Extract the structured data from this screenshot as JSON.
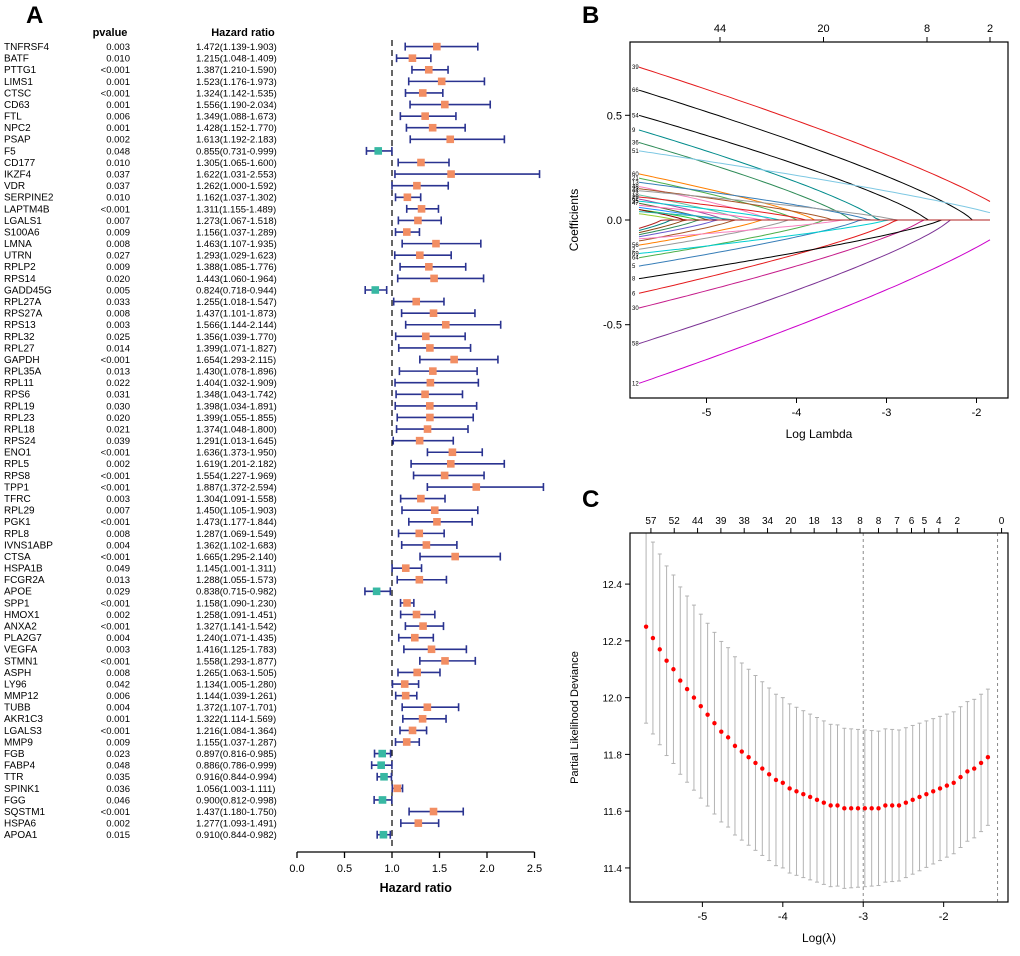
{
  "panels": [
    "A",
    "B",
    "C"
  ],
  "chart_data": [
    {
      "panel": "A",
      "type": "forest",
      "col_headers": [
        "pvalue",
        "Hazard ratio"
      ],
      "xlabel": "Hazard ratio",
      "x_ticks": [
        0.0,
        0.5,
        1.0,
        1.5,
        2.0,
        2.5
      ],
      "xlim": [
        0.0,
        2.5
      ],
      "ref_line": 1.0,
      "colors": {
        "bar": "#2a3390",
        "positive": "#f28e63",
        "negative": "#38b8a3"
      },
      "rows": [
        [
          "TNFRSF4",
          "0.003",
          1.472,
          1.139,
          1.903
        ],
        [
          "BATF",
          "0.010",
          1.215,
          1.048,
          1.409
        ],
        [
          "PTTG1",
          "<0.001",
          1.387,
          1.21,
          1.59
        ],
        [
          "LIMS1",
          "0.001",
          1.523,
          1.176,
          1.973
        ],
        [
          "CTSC",
          "<0.001",
          1.324,
          1.142,
          1.535
        ],
        [
          "CD63",
          "0.001",
          1.556,
          1.19,
          2.034
        ],
        [
          "FTL",
          "0.006",
          1.349,
          1.088,
          1.673
        ],
        [
          "NPC2",
          "0.001",
          1.428,
          1.152,
          1.77
        ],
        [
          "PSAP",
          "0.002",
          1.613,
          1.192,
          2.183
        ],
        [
          "F5",
          "0.048",
          0.855,
          0.731,
          0.999
        ],
        [
          "CD177",
          "0.010",
          1.305,
          1.065,
          1.6
        ],
        [
          "IKZF4",
          "0.037",
          1.622,
          1.031,
          2.553
        ],
        [
          "VDR",
          "0.037",
          1.262,
          1.0,
          1.592
        ],
        [
          "SERPINE2",
          "0.010",
          1.162,
          1.037,
          1.302
        ],
        [
          "LAPTM4B",
          "<0.001",
          1.311,
          1.155,
          1.489
        ],
        [
          "LGALS1",
          "0.007",
          1.273,
          1.067,
          1.518
        ],
        [
          "S100A6",
          "0.009",
          1.156,
          1.037,
          1.289
        ],
        [
          "LMNA",
          "0.008",
          1.463,
          1.107,
          1.935
        ],
        [
          "UTRN",
          "0.027",
          1.293,
          1.029,
          1.623
        ],
        [
          "RPLP2",
          "0.009",
          1.388,
          1.085,
          1.776
        ],
        [
          "RPS14",
          "0.020",
          1.443,
          1.06,
          1.964
        ],
        [
          "GADD45G",
          "0.005",
          0.824,
          0.718,
          0.944
        ],
        [
          "RPL27A",
          "0.033",
          1.255,
          1.018,
          1.547
        ],
        [
          "RPS27A",
          "0.008",
          1.437,
          1.101,
          1.873
        ],
        [
          "RPS13",
          "0.003",
          1.566,
          1.144,
          2.144
        ],
        [
          "RPL32",
          "0.025",
          1.356,
          1.039,
          1.77
        ],
        [
          "RPL27",
          "0.014",
          1.399,
          1.071,
          1.827
        ],
        [
          "GAPDH",
          "<0.001",
          1.654,
          1.293,
          2.115
        ],
        [
          "RPL35A",
          "0.013",
          1.43,
          1.078,
          1.896
        ],
        [
          "RPL11",
          "0.022",
          1.404,
          1.032,
          1.909
        ],
        [
          "RPS6",
          "0.031",
          1.348,
          1.043,
          1.742
        ],
        [
          "RPL19",
          "0.030",
          1.398,
          1.034,
          1.891
        ],
        [
          "RPL23",
          "0.020",
          1.399,
          1.055,
          1.855
        ],
        [
          "RPL18",
          "0.021",
          1.374,
          1.048,
          1.8
        ],
        [
          "RPS24",
          "0.039",
          1.291,
          1.013,
          1.645
        ],
        [
          "ENO1",
          "<0.001",
          1.636,
          1.373,
          1.95
        ],
        [
          "RPL5",
          "0.002",
          1.619,
          1.201,
          2.182
        ],
        [
          "RPS8",
          "<0.001",
          1.554,
          1.227,
          1.969
        ],
        [
          "TPP1",
          "<0.001",
          1.887,
          1.372,
          2.594
        ],
        [
          "TFRC",
          "0.003",
          1.304,
          1.091,
          1.558
        ],
        [
          "RPL29",
          "0.007",
          1.45,
          1.105,
          1.903
        ],
        [
          "PGK1",
          "<0.001",
          1.473,
          1.177,
          1.844
        ],
        [
          "RPL8",
          "0.008",
          1.287,
          1.069,
          1.549
        ],
        [
          "IVNS1ABP",
          "0.004",
          1.362,
          1.102,
          1.683
        ],
        [
          "CTSA",
          "<0.001",
          1.665,
          1.295,
          2.14
        ],
        [
          "HSPA1B",
          "0.049",
          1.145,
          1.001,
          1.311
        ],
        [
          "FCGR2A",
          "0.013",
          1.288,
          1.055,
          1.573
        ],
        [
          "APOE",
          "0.029",
          0.838,
          0.715,
          0.982
        ],
        [
          "SPP1",
          "<0.001",
          1.158,
          1.09,
          1.23
        ],
        [
          "HMOX1",
          "0.002",
          1.258,
          1.091,
          1.451
        ],
        [
          "ANXA2",
          "<0.001",
          1.327,
          1.141,
          1.542
        ],
        [
          "PLA2G7",
          "0.004",
          1.24,
          1.071,
          1.435
        ],
        [
          "VEGFA",
          "0.003",
          1.416,
          1.125,
          1.783
        ],
        [
          "STMN1",
          "<0.001",
          1.558,
          1.293,
          1.877
        ],
        [
          "ASPH",
          "0.008",
          1.265,
          1.063,
          1.505
        ],
        [
          "LY96",
          "0.042",
          1.134,
          1.005,
          1.28
        ],
        [
          "MMP12",
          "0.006",
          1.144,
          1.039,
          1.261
        ],
        [
          "TUBB",
          "0.004",
          1.372,
          1.107,
          1.701
        ],
        [
          "AKR1C3",
          "0.001",
          1.322,
          1.114,
          1.569
        ],
        [
          "LGALS3",
          "<0.001",
          1.216,
          1.084,
          1.364
        ],
        [
          "MMP9",
          "0.009",
          1.155,
          1.037,
          1.287
        ],
        [
          "FGB",
          "0.023",
          0.897,
          0.816,
          0.985
        ],
        [
          "FABP4",
          "0.048",
          0.886,
          0.786,
          0.999
        ],
        [
          "TTR",
          "0.035",
          0.916,
          0.844,
          0.994
        ],
        [
          "SPINK1",
          "0.036",
          1.056,
          1.003,
          1.111
        ],
        [
          "FGG",
          "0.046",
          0.9,
          0.812,
          0.998
        ],
        [
          "SQSTM1",
          "<0.001",
          1.437,
          1.18,
          1.75
        ],
        [
          "HSPA6",
          "0.002",
          1.277,
          1.093,
          1.491
        ],
        [
          "APOA1",
          "0.015",
          0.91,
          0.844,
          0.982
        ]
      ]
    },
    {
      "panel": "B",
      "type": "line",
      "xlabel": "Log Lambda",
      "ylabel": "Coefficients",
      "xlim": [
        -5.85,
        -1.65
      ],
      "ylim": [
        -0.85,
        0.85
      ],
      "x_ticks": [
        -5,
        -4,
        -3,
        -2
      ],
      "y_ticks": [
        0.5,
        0.0,
        -0.5
      ],
      "top_axis": [
        {
          "v": 44,
          "x": -4.85
        },
        {
          "v": 20,
          "x": -3.7
        },
        {
          "v": 8,
          "x": -2.55
        },
        {
          "v": 2,
          "x": -1.85
        }
      ],
      "series": [
        {
          "color": "#e41a1c",
          "y0": 0.73,
          "xz": -1.55,
          "label": "39"
        },
        {
          "color": "#000000",
          "y0": 0.62,
          "xz": -2.05,
          "label": "66"
        },
        {
          "color": "#000000",
          "y0": 0.5,
          "xz": -2.55,
          "label": "54"
        },
        {
          "color": "#008b8b",
          "y0": 0.43,
          "xz": -3.1,
          "label": "9"
        },
        {
          "color": "#2e8b57",
          "y0": 0.37,
          "xz": -3.4,
          "label": "36"
        },
        {
          "color": "#7ec8e3",
          "y0": 0.33,
          "xz": -1.6,
          "label": "51"
        },
        {
          "color": "#ff7f00",
          "y0": 0.22,
          "xz": -3.8,
          "label": "60"
        },
        {
          "color": "#4daf4a",
          "y0": 0.2,
          "xz": -4.0,
          "label": "21"
        },
        {
          "color": "#377eb8",
          "y0": 0.18,
          "xz": -3.2,
          "label": "13"
        },
        {
          "color": "#f781bf",
          "y0": 0.16,
          "xz": -4.3,
          "label": "48"
        },
        {
          "color": "#a65628",
          "y0": 0.15,
          "xz": -3.6,
          "label": "23"
        },
        {
          "color": "#999999",
          "y0": 0.14,
          "xz": -2.9,
          "label": "44"
        },
        {
          "color": "#66c2a5",
          "y0": 0.12,
          "xz": -4.6,
          "label": "18"
        },
        {
          "color": "#e41a1c",
          "y0": 0.11,
          "xz": -3.9,
          "label": "29"
        },
        {
          "color": "#984ea3",
          "y0": 0.1,
          "xz": -4.8,
          "label": "62"
        },
        {
          "color": "#00ced1",
          "y0": 0.09,
          "xz": -4.2,
          "label": "35"
        },
        {
          "color": "#556b2f",
          "y0": 0.08,
          "xz": -5.0,
          "label": "47"
        },
        {
          "color": "#ff69b4",
          "y0": 0.07,
          "xz": -4.4
        },
        {
          "color": "#1e90ff",
          "y0": 0.06,
          "xz": -4.9
        },
        {
          "color": "#32cd32",
          "y0": 0.05,
          "xz": -5.1
        },
        {
          "color": "#8b0000",
          "y0": 0.05,
          "xz": -5.25
        },
        {
          "color": "#20b2aa",
          "y0": 0.04,
          "xz": -4.7
        },
        {
          "color": "#9acd32",
          "y0": 0.03,
          "xz": -5.35
        },
        {
          "color": "#cc00cc",
          "y0": -0.78,
          "xz": -1.55,
          "label": "12"
        },
        {
          "color": "#7b3294",
          "y0": -0.59,
          "xz": -2.3,
          "label": "58"
        },
        {
          "color": "#c51b8a",
          "y0": -0.42,
          "xz": -2.6,
          "label": "30"
        },
        {
          "color": "#e41a1c",
          "y0": -0.35,
          "xz": -2.9,
          "label": "6"
        },
        {
          "color": "#000000",
          "y0": -0.28,
          "xz": -2.4,
          "label": "8"
        },
        {
          "color": "#377eb8",
          "y0": -0.22,
          "xz": -3.3,
          "label": "5"
        },
        {
          "color": "#4daf4a",
          "y0": -0.18,
          "xz": -3.7,
          "label": "64"
        },
        {
          "color": "#00ced1",
          "y0": -0.16,
          "xz": -3.0,
          "label": "69"
        },
        {
          "color": "#999999",
          "y0": -0.14,
          "xz": -4.1,
          "label": "2"
        },
        {
          "color": "#ff7f00",
          "y0": -0.12,
          "xz": -4.4,
          "label": "56"
        },
        {
          "color": "#a65628",
          "y0": -0.1,
          "xz": -4.7
        },
        {
          "color": "#f781bf",
          "y0": -0.09,
          "xz": -3.5
        },
        {
          "color": "#6a5acd",
          "y0": -0.08,
          "xz": -4.9
        },
        {
          "color": "#2e8b57",
          "y0": -0.07,
          "xz": -5.1
        },
        {
          "color": "#8b4513",
          "y0": -0.06,
          "xz": -5.25
        },
        {
          "color": "#008080",
          "y0": -0.05,
          "xz": -5.4
        },
        {
          "color": "#b22222",
          "y0": -0.04,
          "xz": -5.5
        }
      ]
    },
    {
      "panel": "C",
      "type": "scatter",
      "xlabel": "Log(λ)",
      "ylabel": "Partial Likelihood Deviance",
      "xlim": [
        -5.9,
        -1.2
      ],
      "ylim": [
        11.28,
        12.58
      ],
      "x_ticks": [
        -5,
        -4,
        -3,
        -2
      ],
      "y_ticks": [
        11.4,
        11.6,
        11.8,
        12.0,
        12.2,
        12.4
      ],
      "top_counts": [
        {
          "v": "57",
          "x": -5.64
        },
        {
          "v": "52",
          "x": -5.35
        },
        {
          "v": "44",
          "x": -5.06
        },
        {
          "v": "39",
          "x": -4.77
        },
        {
          "v": "38",
          "x": -4.48
        },
        {
          "v": "34",
          "x": -4.19
        },
        {
          "v": "20",
          "x": -3.9
        },
        {
          "v": "18",
          "x": -3.61
        },
        {
          "v": "13",
          "x": -3.33
        },
        {
          "v": "8",
          "x": -3.04
        },
        {
          "v": "8",
          "x": -2.81
        },
        {
          "v": "7",
          "x": -2.58
        },
        {
          "v": "6",
          "x": -2.4
        },
        {
          "v": "5",
          "x": -2.24
        },
        {
          "v": "4",
          "x": -2.06
        },
        {
          "v": "2",
          "x": -1.83
        },
        {
          "v": "0",
          "x": -1.28
        }
      ],
      "vlines": [
        -3.0,
        -1.33
      ],
      "dot_color": "#ff0000",
      "bar_color": "#b3b3b3",
      "x_start": -5.7,
      "x_step": 0.085,
      "se_start": 0.34,
      "se_end": 0.24,
      "y": [
        12.25,
        12.21,
        12.17,
        12.13,
        12.1,
        12.06,
        12.03,
        12.0,
        11.97,
        11.94,
        11.91,
        11.88,
        11.86,
        11.83,
        11.81,
        11.79,
        11.77,
        11.75,
        11.73,
        11.71,
        11.7,
        11.68,
        11.67,
        11.66,
        11.65,
        11.64,
        11.63,
        11.62,
        11.62,
        11.61,
        11.61,
        11.61,
        11.61,
        11.61,
        11.61,
        11.62,
        11.62,
        11.62,
        11.63,
        11.64,
        11.65,
        11.66,
        11.67,
        11.68,
        11.69,
        11.7,
        11.72,
        11.74,
        11.75,
        11.77,
        11.79
      ]
    }
  ]
}
